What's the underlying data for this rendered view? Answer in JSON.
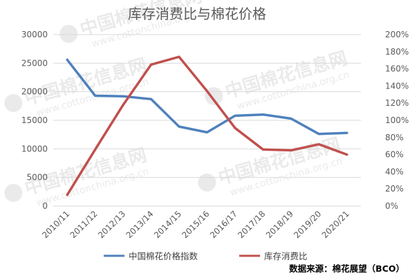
{
  "watermark": {
    "name": "中国棉花信息网",
    "url": "www.cottonchina.org.cn"
  },
  "chart_data": {
    "type": "line",
    "title": "库存消费比与棉花价格",
    "categories": [
      "2010/11",
      "2011/12",
      "2012/13",
      "2013/14",
      "2014/15",
      "2015/16",
      "2016/17",
      "2017/18",
      "2018/19",
      "2019/20",
      "2020/21"
    ],
    "y_left": {
      "ylim": [
        0,
        30000
      ],
      "ticks": [
        "0",
        "5000",
        "10000",
        "15000",
        "20000",
        "25000",
        "30000"
      ]
    },
    "y_right": {
      "ylim": [
        0,
        200
      ],
      "unit": "%",
      "ticks": [
        "0%",
        "20%",
        "40%",
        "60%",
        "80%",
        "100%",
        "120%",
        "140%",
        "160%",
        "180%",
        "200%"
      ]
    },
    "series": [
      {
        "name": "中国棉花价格指数",
        "axis": "left",
        "color": "#4f81bd",
        "values": [
          25600,
          19300,
          19200,
          18700,
          13900,
          12900,
          15800,
          16000,
          15300,
          12600,
          12800
        ]
      },
      {
        "name": "库存消费比",
        "axis": "right",
        "unit": "%",
        "color": "#c0504d",
        "values": [
          13,
          66,
          118,
          165,
          174,
          134,
          91,
          66,
          65,
          72,
          60
        ]
      }
    ],
    "grid": true,
    "legend": "bottom",
    "source_note": "数据来源：棉花展望（BCO）"
  }
}
